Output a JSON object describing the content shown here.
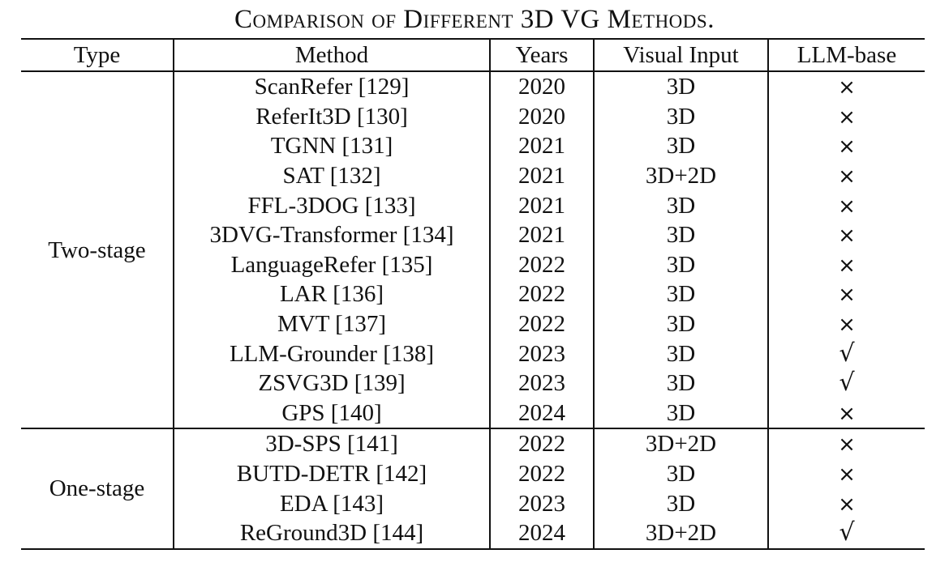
{
  "caption": "Comparison of Different 3D VG Methods.",
  "headers": {
    "type": "Type",
    "method": "Method",
    "years": "Years",
    "visual_input": "Visual Input",
    "llm_base": "LLM-base"
  },
  "marks": {
    "yes": "√",
    "no": "×"
  },
  "groups": [
    {
      "type": "Two-stage",
      "rows": [
        {
          "method": "ScanRefer [129]",
          "year": "2020",
          "visual_input": "3D",
          "llm_base": "×"
        },
        {
          "method": "ReferIt3D [130]",
          "year": "2020",
          "visual_input": "3D",
          "llm_base": "×"
        },
        {
          "method": "TGNN [131]",
          "year": "2021",
          "visual_input": "3D",
          "llm_base": "×"
        },
        {
          "method": "SAT [132]",
          "year": "2021",
          "visual_input": "3D+2D",
          "llm_base": "×"
        },
        {
          "method": "FFL-3DOG [133]",
          "year": "2021",
          "visual_input": "3D",
          "llm_base": "×"
        },
        {
          "method": "3DVG-Transformer [134]",
          "year": "2021",
          "visual_input": "3D",
          "llm_base": "×"
        },
        {
          "method": "LanguageRefer [135]",
          "year": "2022",
          "visual_input": "3D",
          "llm_base": "×"
        },
        {
          "method": "LAR [136]",
          "year": "2022",
          "visual_input": "3D",
          "llm_base": "×"
        },
        {
          "method": "MVT [137]",
          "year": "2022",
          "visual_input": "3D",
          "llm_base": "×"
        },
        {
          "method": "LLM-Grounder [138]",
          "year": "2023",
          "visual_input": "3D",
          "llm_base": "√"
        },
        {
          "method": "ZSVG3D [139]",
          "year": "2023",
          "visual_input": "3D",
          "llm_base": "√"
        },
        {
          "method": "GPS [140]",
          "year": "2024",
          "visual_input": "3D",
          "llm_base": "×"
        }
      ]
    },
    {
      "type": "One-stage",
      "rows": [
        {
          "method": "3D-SPS [141]",
          "year": "2022",
          "visual_input": "3D+2D",
          "llm_base": "×"
        },
        {
          "method": "BUTD-DETR [142]",
          "year": "2022",
          "visual_input": "3D",
          "llm_base": "×"
        },
        {
          "method": "EDA [143]",
          "year": "2023",
          "visual_input": "3D",
          "llm_base": "×"
        },
        {
          "method": "ReGround3D [144]",
          "year": "2024",
          "visual_input": "3D+2D",
          "llm_base": "√"
        }
      ]
    }
  ]
}
